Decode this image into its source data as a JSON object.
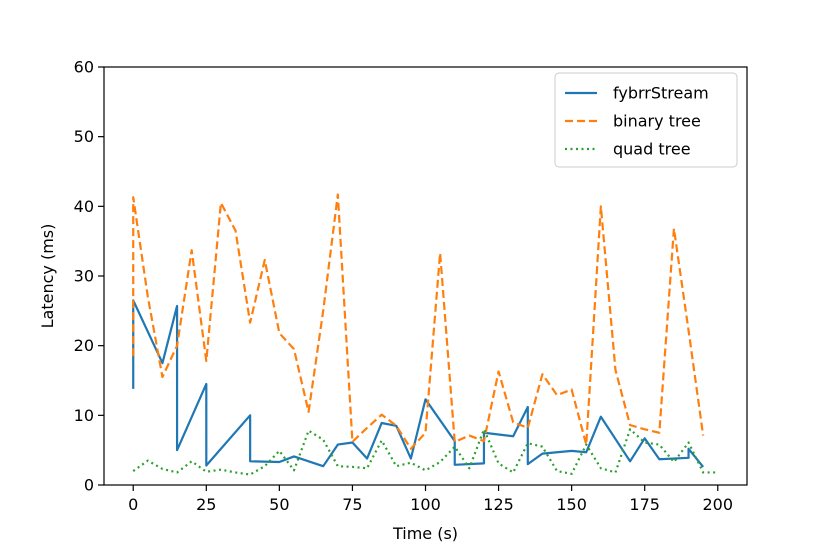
{
  "chart_data": {
    "type": "line",
    "xlabel": "Time (s)",
    "ylabel": "Latency (ms)",
    "xlim": [
      -10,
      210
    ],
    "ylim": [
      0,
      60
    ],
    "xticks": [
      0,
      25,
      50,
      75,
      100,
      125,
      150,
      175,
      200
    ],
    "yticks": [
      0,
      10,
      20,
      30,
      40,
      50,
      60
    ],
    "grid": false,
    "legend_position": "top-right",
    "series": [
      {
        "name": "fybrrStream",
        "color": "#1f77b4",
        "dash": "solid",
        "points": [
          [
            0,
            13.8
          ],
          [
            0,
            26.5
          ],
          [
            10,
            17.5
          ],
          [
            15,
            25.7
          ],
          [
            15,
            5.0
          ],
          [
            25,
            14.5
          ],
          [
            25,
            2.8
          ],
          [
            40,
            10.0
          ],
          [
            40,
            3.4
          ],
          [
            50,
            3.3
          ],
          [
            55,
            4.1
          ],
          [
            65,
            2.7
          ],
          [
            70,
            5.8
          ],
          [
            75,
            6.1
          ],
          [
            80,
            3.8
          ],
          [
            85,
            8.9
          ],
          [
            90,
            8.5
          ],
          [
            95,
            3.8
          ],
          [
            100,
            12.3
          ],
          [
            110,
            6.3
          ],
          [
            110,
            2.9
          ],
          [
            120,
            3.1
          ],
          [
            120,
            7.5
          ],
          [
            130,
            7.0
          ],
          [
            135,
            11.2
          ],
          [
            135,
            3.0
          ],
          [
            140,
            4.5
          ],
          [
            150,
            4.9
          ],
          [
            155,
            4.7
          ],
          [
            160,
            9.8
          ],
          [
            170,
            3.4
          ],
          [
            175,
            6.7
          ],
          [
            180,
            3.7
          ],
          [
            190,
            3.9
          ],
          [
            190,
            5.2
          ],
          [
            195,
            2.6
          ]
        ]
      },
      {
        "name": "binary tree",
        "color": "#ff7f0e",
        "dash": "dashed",
        "points": [
          [
            0,
            18.5
          ],
          [
            0,
            41.3
          ],
          [
            5,
            27.0
          ],
          [
            10,
            15.5
          ],
          [
            15,
            20.0
          ],
          [
            20,
            33.7
          ],
          [
            25,
            17.8
          ],
          [
            30,
            40.5
          ],
          [
            35,
            36.5
          ],
          [
            40,
            23.3
          ],
          [
            45,
            32.3
          ],
          [
            50,
            21.8
          ],
          [
            55,
            19.5
          ],
          [
            60,
            10.5
          ],
          [
            65,
            25.0
          ],
          [
            70,
            41.7
          ],
          [
            75,
            6.2
          ],
          [
            80,
            8.2
          ],
          [
            85,
            10.1
          ],
          [
            90,
            8.5
          ],
          [
            95,
            5.2
          ],
          [
            100,
            7.5
          ],
          [
            105,
            33.3
          ],
          [
            110,
            6.2
          ],
          [
            115,
            7.1
          ],
          [
            120,
            6.3
          ],
          [
            125,
            16.3
          ],
          [
            130,
            9.0
          ],
          [
            135,
            8.2
          ],
          [
            140,
            15.9
          ],
          [
            145,
            12.9
          ],
          [
            150,
            13.7
          ],
          [
            155,
            5.8
          ],
          [
            160,
            40.0
          ],
          [
            165,
            16.5
          ],
          [
            170,
            8.6
          ],
          [
            175,
            8.0
          ],
          [
            180,
            7.5
          ],
          [
            185,
            36.8
          ],
          [
            190,
            22.2
          ],
          [
            195,
            7.1
          ]
        ]
      },
      {
        "name": "quad tree",
        "color": "#2ca02c",
        "dash": "dotted",
        "points": [
          [
            0,
            2.0
          ],
          [
            5,
            3.5
          ],
          [
            10,
            2.3
          ],
          [
            15,
            1.8
          ],
          [
            20,
            3.4
          ],
          [
            25,
            1.9
          ],
          [
            30,
            2.2
          ],
          [
            35,
            1.8
          ],
          [
            40,
            1.5
          ],
          [
            45,
            2.7
          ],
          [
            50,
            4.9
          ],
          [
            55,
            2.1
          ],
          [
            60,
            7.8
          ],
          [
            65,
            6.5
          ],
          [
            70,
            2.7
          ],
          [
            75,
            2.6
          ],
          [
            80,
            2.4
          ],
          [
            85,
            6.4
          ],
          [
            90,
            2.7
          ],
          [
            95,
            3.2
          ],
          [
            100,
            2.1
          ],
          [
            105,
            3.3
          ],
          [
            110,
            5.5
          ],
          [
            115,
            2.4
          ],
          [
            120,
            8.0
          ],
          [
            125,
            3.1
          ],
          [
            130,
            1.8
          ],
          [
            135,
            6.0
          ],
          [
            140,
            5.5
          ],
          [
            145,
            2.0
          ],
          [
            150,
            1.6
          ],
          [
            155,
            5.8
          ],
          [
            160,
            2.4
          ],
          [
            165,
            1.8
          ],
          [
            170,
            8.0
          ],
          [
            175,
            6.1
          ],
          [
            180,
            5.8
          ],
          [
            185,
            3.3
          ],
          [
            190,
            6.1
          ],
          [
            195,
            1.8
          ],
          [
            200,
            1.8
          ]
        ]
      }
    ]
  }
}
